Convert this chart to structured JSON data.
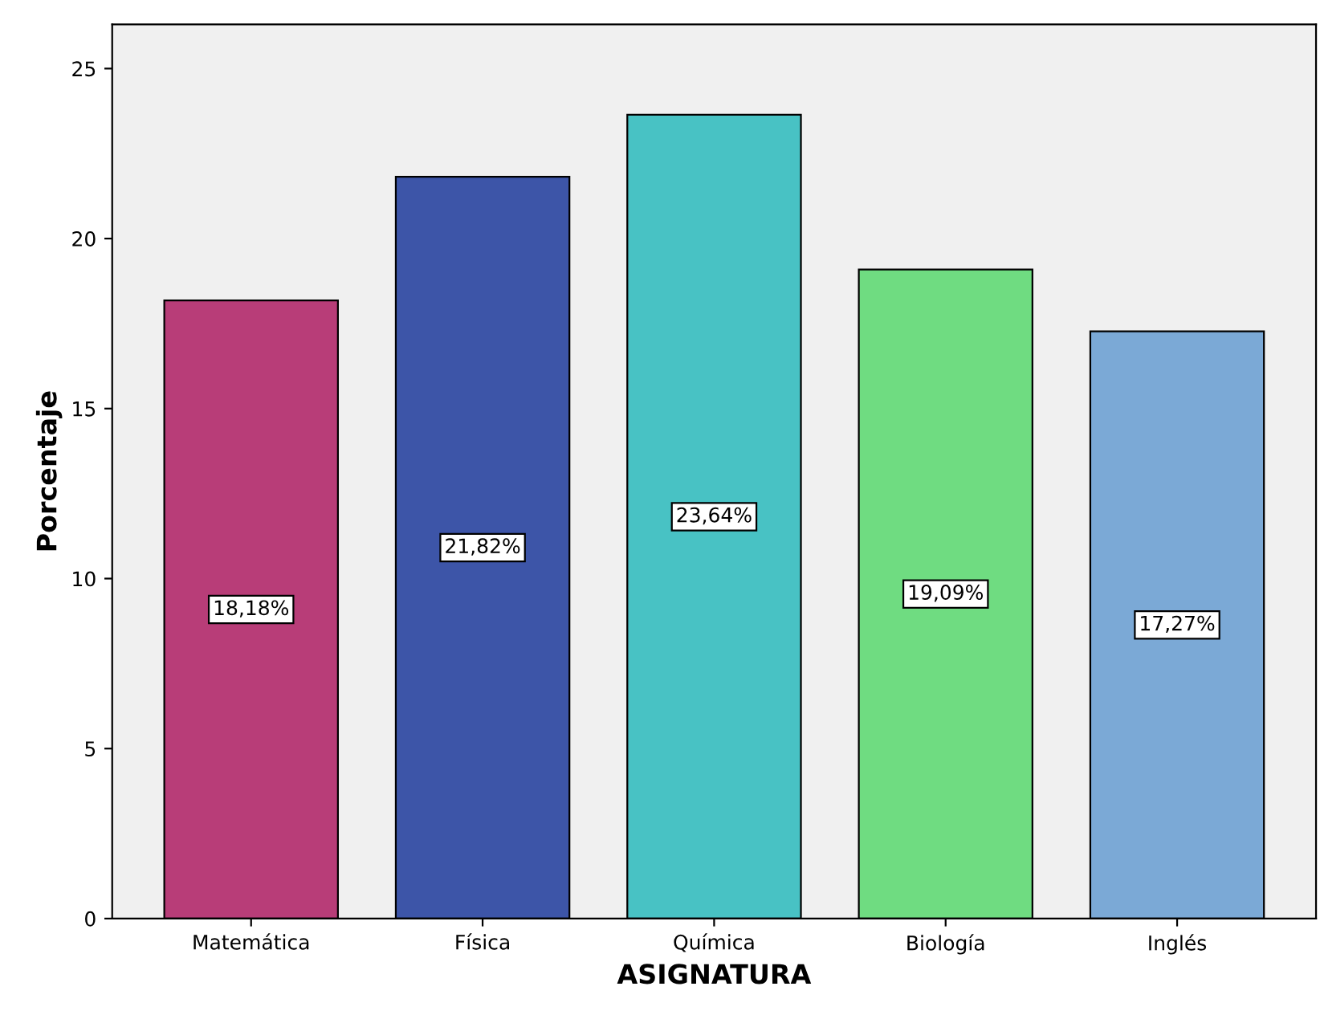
{
  "chart_data": {
    "type": "bar",
    "xlabel": "ASIGNATURA",
    "ylabel": "Porcentaje",
    "categories": [
      "Matemática",
      "Física",
      "Química",
      "Biología",
      "Inglés"
    ],
    "values": [
      18.18,
      21.82,
      23.64,
      19.09,
      17.27
    ],
    "colors": [
      "#b83d78",
      "#3d55a8",
      "#48c2c4",
      "#6fdc81",
      "#7ba9d6"
    ],
    "value_labels": [
      "18,18%",
      "21,82%",
      "23,64%",
      "19,09%",
      "17,27%"
    ],
    "ylim": [
      0,
      26.3
    ],
    "yticks": [
      0,
      5,
      10,
      15,
      20,
      25
    ],
    "grid": false,
    "legend": false
  }
}
